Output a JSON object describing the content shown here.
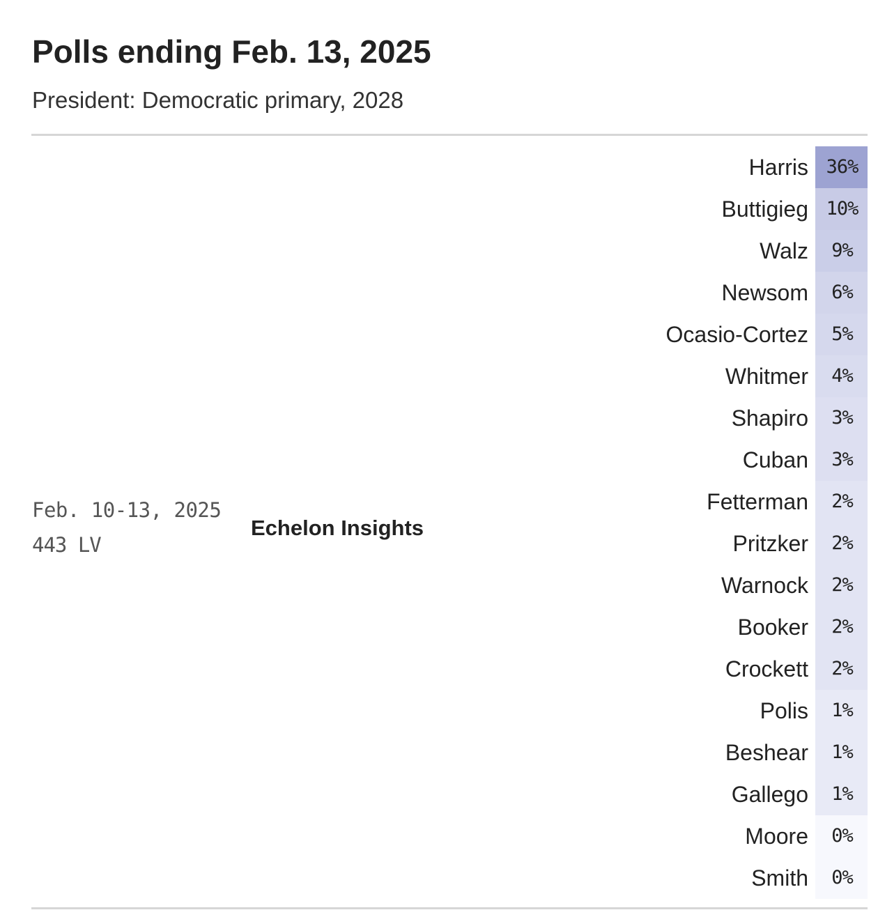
{
  "header": {
    "title": "Polls ending Feb. 13, 2025",
    "subtitle": "President: Democratic primary, 2028"
  },
  "poll": {
    "dates": "Feb. 10-13, 2025",
    "sample": "443 LV",
    "pollster": "Echelon Insights"
  },
  "colors": {
    "cell_max": "#9da3d2",
    "cell_base": "#f7f8fd"
  },
  "results": [
    {
      "name": "Harris",
      "value": 36,
      "label": "36%"
    },
    {
      "name": "Buttigieg",
      "value": 10,
      "label": "10%"
    },
    {
      "name": "Walz",
      "value": 9,
      "label": "9%"
    },
    {
      "name": "Newsom",
      "value": 6,
      "label": "6%"
    },
    {
      "name": "Ocasio-Cortez",
      "value": 5,
      "label": "5%"
    },
    {
      "name": "Whitmer",
      "value": 4,
      "label": "4%"
    },
    {
      "name": "Shapiro",
      "value": 3,
      "label": "3%"
    },
    {
      "name": "Cuban",
      "value": 3,
      "label": "3%"
    },
    {
      "name": "Fetterman",
      "value": 2,
      "label": "2%"
    },
    {
      "name": "Pritzker",
      "value": 2,
      "label": "2%"
    },
    {
      "name": "Warnock",
      "value": 2,
      "label": "2%"
    },
    {
      "name": "Booker",
      "value": 2,
      "label": "2%"
    },
    {
      "name": "Crockett",
      "value": 2,
      "label": "2%"
    },
    {
      "name": "Polis",
      "value": 1,
      "label": "1%"
    },
    {
      "name": "Beshear",
      "value": 1,
      "label": "1%"
    },
    {
      "name": "Gallego",
      "value": 1,
      "label": "1%"
    },
    {
      "name": "Moore",
      "value": 0,
      "label": "0%"
    },
    {
      "name": "Smith",
      "value": 0,
      "label": "0%"
    }
  ]
}
